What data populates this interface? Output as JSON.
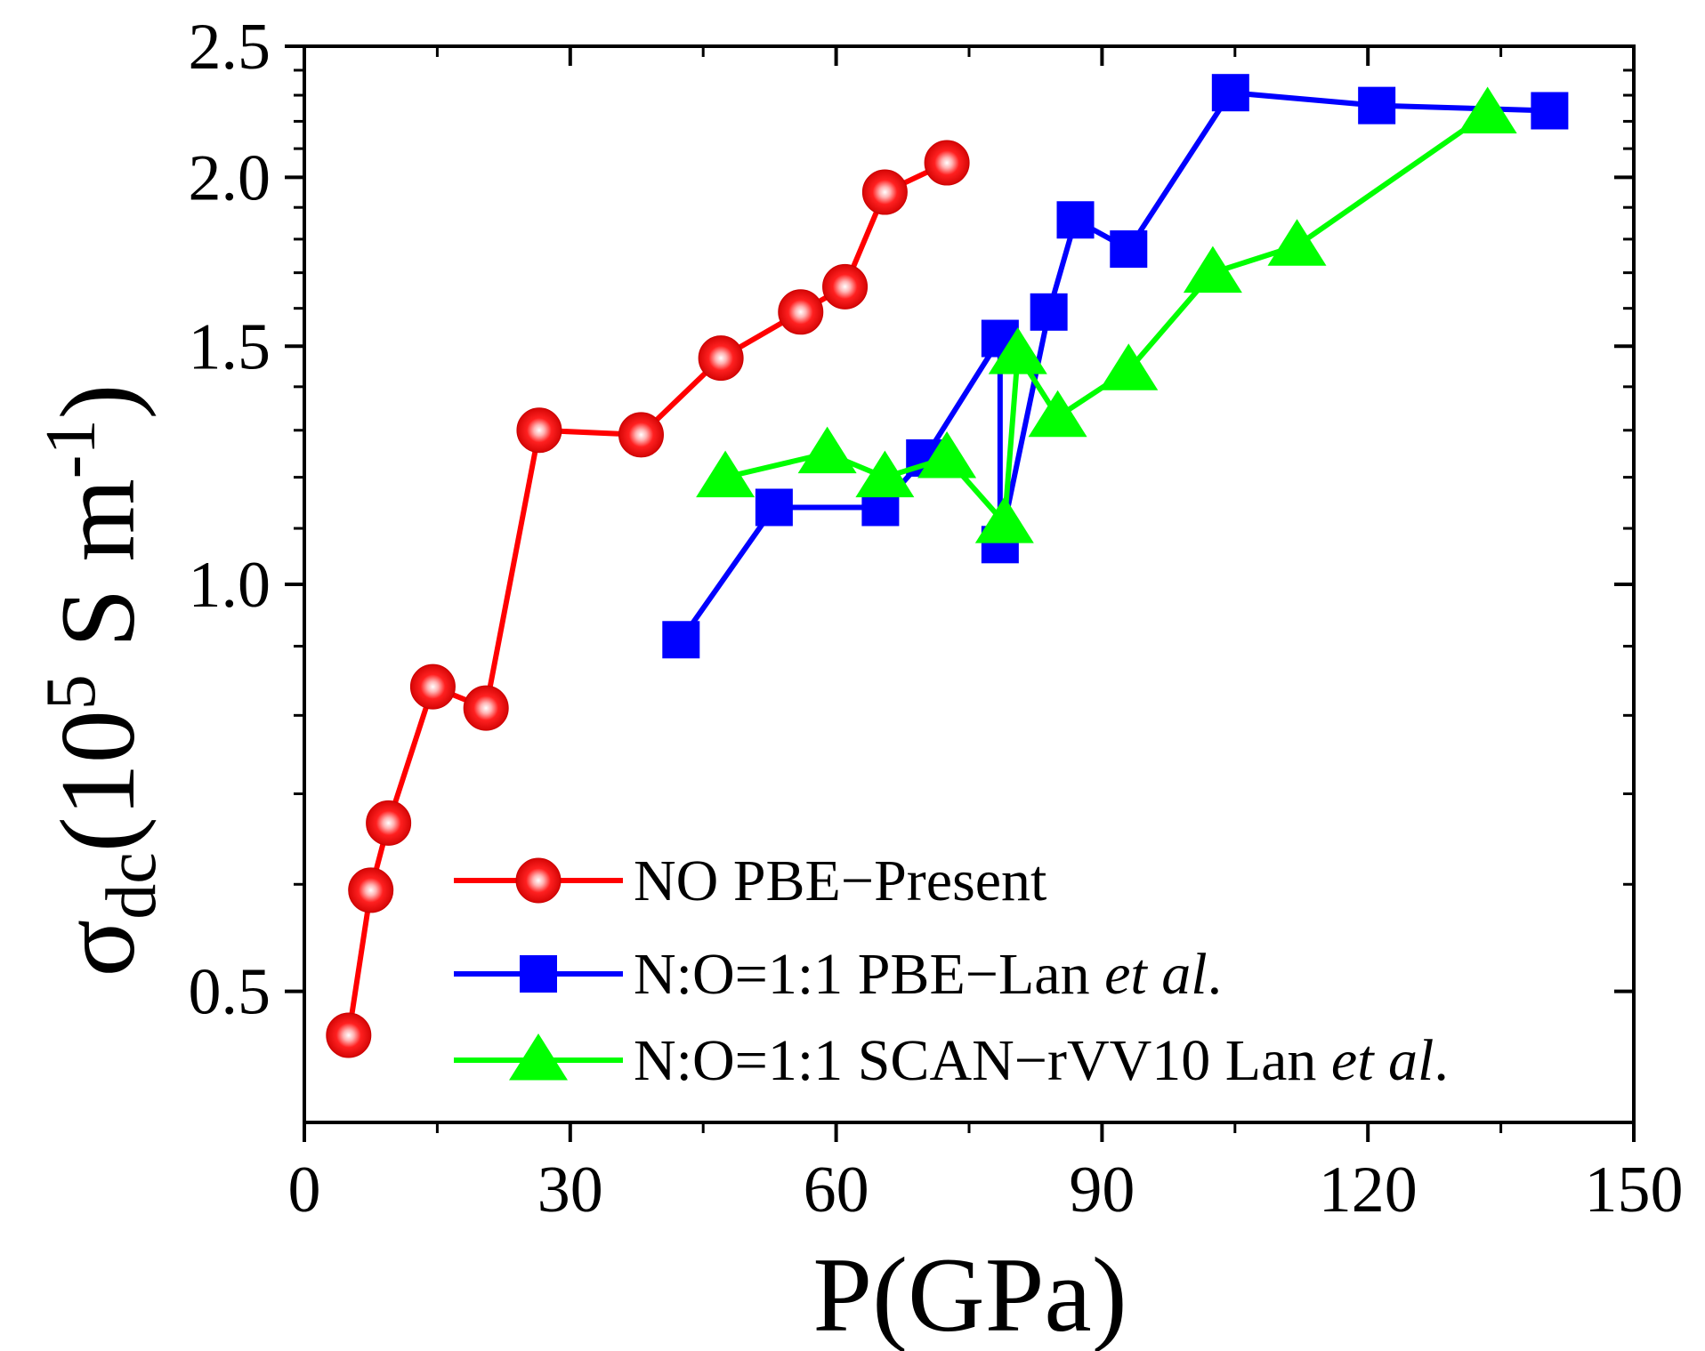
{
  "chart_data": {
    "type": "line",
    "title": "",
    "xlabel": "P(GPa)",
    "ylabel": {
      "main": "σ",
      "subscript": "dc",
      "unit_open": "(10",
      "unit_exp": "5",
      "unit_mid": " S m",
      "unit_exp2": "-1",
      "unit_close": ")"
    },
    "xlim": [
      0,
      150
    ],
    "ylim": [
      0.4,
      2.5
    ],
    "yscale": "log",
    "x_ticks": [
      0,
      30,
      60,
      90,
      120,
      150
    ],
    "x_tick_labels": [
      "0",
      "30",
      "60",
      "90",
      "120",
      "150"
    ],
    "y_ticks": [
      0.5,
      1.0,
      1.5,
      2.0,
      2.5
    ],
    "y_tick_labels": [
      "0.5",
      "1.0",
      "1.5",
      "2.0",
      "2.5"
    ],
    "legend_position": "bottom-right",
    "series": [
      {
        "name": "NO PBE−Present",
        "legend_parts": [
          "NO PBE−Present"
        ],
        "color": "#ff0000",
        "marker": "sphere",
        "points": [
          [
            5,
            0.464
          ],
          [
            7.5,
            0.594
          ],
          [
            9.5,
            0.666
          ],
          [
            14.5,
            0.84
          ],
          [
            20.5,
            0.81
          ],
          [
            26.5,
            1.3
          ],
          [
            38,
            1.29
          ],
          [
            47,
            1.47
          ],
          [
            56,
            1.59
          ],
          [
            61,
            1.66
          ],
          [
            65.5,
            1.95
          ],
          [
            72.5,
            2.05
          ]
        ]
      },
      {
        "name": "N:O=1:1 PBE−Lan et al.",
        "legend_parts": [
          "N:O=1:1 PBE−Lan ",
          "et al",
          "."
        ],
        "color": "#0000ff",
        "marker": "square",
        "points": [
          [
            42.5,
            0.91
          ],
          [
            53,
            1.14
          ],
          [
            65,
            1.14
          ],
          [
            70,
            1.24
          ],
          [
            78.5,
            1.52
          ],
          [
            78.5,
            1.07
          ],
          [
            84,
            1.59
          ],
          [
            87,
            1.86
          ],
          [
            93,
            1.77
          ],
          [
            104.5,
            2.31
          ],
          [
            121,
            2.26
          ],
          [
            140.5,
            2.24
          ]
        ]
      },
      {
        "name": "N:O=1:1 SCAN−rVV10 Lan et al.",
        "legend_parts": [
          "N:O=1:1 SCAN−rVV10 Lan ",
          "et al",
          "."
        ],
        "color": "#00ff00",
        "marker": "triangle",
        "points": [
          [
            47.5,
            1.2
          ],
          [
            59,
            1.25
          ],
          [
            65.5,
            1.2
          ],
          [
            72.5,
            1.24
          ],
          [
            79,
            1.11
          ],
          [
            80.5,
            1.48
          ],
          [
            85,
            1.33
          ],
          [
            93,
            1.44
          ],
          [
            102.5,
            1.7
          ],
          [
            112,
            1.78
          ],
          [
            133.5,
            2.23
          ]
        ]
      }
    ]
  }
}
